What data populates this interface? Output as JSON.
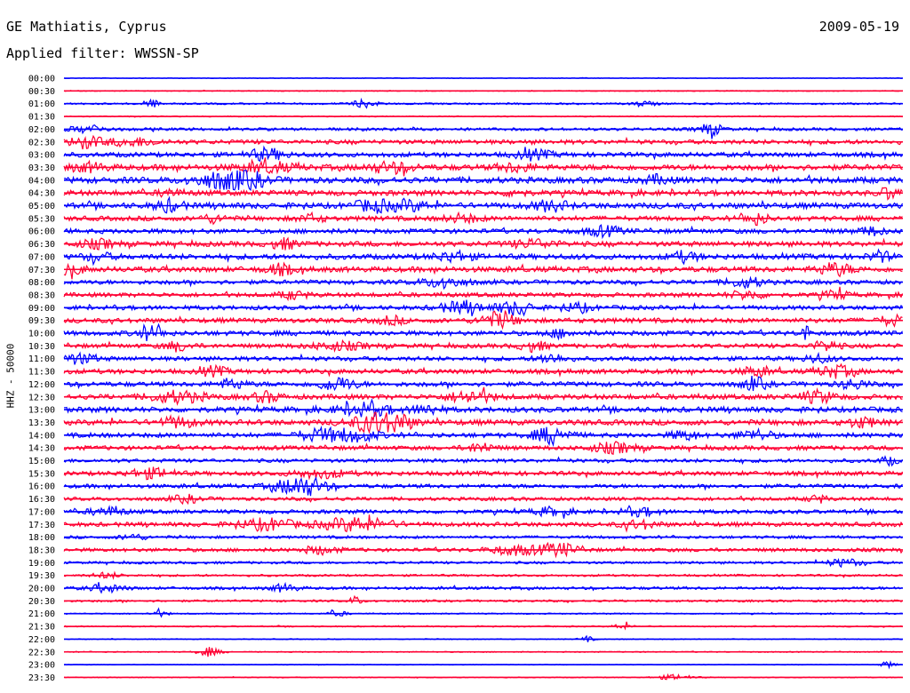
{
  "header": {
    "station": "GE Mathiatis, Cyprus",
    "date": "2009-05-19",
    "filter": "Applied filter: WWSSN-SP"
  },
  "chart_data": {
    "type": "line",
    "title": "GE Mathiatis, Cyprus",
    "ylabel": "HHZ - 50000",
    "rows": [
      "00:00",
      "00:30",
      "01:00",
      "01:30",
      "02:00",
      "02:30",
      "03:00",
      "03:30",
      "04:00",
      "04:30",
      "05:00",
      "05:30",
      "06:00",
      "06:30",
      "07:00",
      "07:30",
      "08:00",
      "08:30",
      "09:00",
      "09:30",
      "10:00",
      "10:30",
      "11:00",
      "11:30",
      "12:00",
      "12:30",
      "13:00",
      "13:30",
      "14:00",
      "14:30",
      "15:00",
      "15:30",
      "16:00",
      "16:30",
      "17:00",
      "17:30",
      "18:00",
      "18:30",
      "19:00",
      "19:30",
      "20:00",
      "20:30",
      "21:00",
      "21:30",
      "22:00",
      "22:30",
      "23:00",
      "23:30"
    ],
    "series_colors": [
      "#0000ff",
      "#ff0033"
    ],
    "noise_level": [
      0.4,
      0.5,
      1.0,
      0.6,
      1.6,
      2.4,
      2.6,
      3.2,
      3.4,
      3.0,
      3.2,
      2.6,
      2.6,
      2.8,
      3.0,
      3.0,
      2.4,
      2.4,
      2.4,
      2.6,
      2.6,
      2.4,
      2.4,
      2.6,
      2.6,
      2.8,
      3.0,
      3.0,
      2.6,
      2.4,
      2.0,
      2.4,
      2.2,
      2.0,
      2.2,
      2.4,
      1.6,
      2.0,
      1.4,
      1.2,
      1.6,
      1.2,
      0.7,
      0.7,
      0.5,
      0.6,
      0.4,
      0.5
    ],
    "events": [
      [],
      [],
      [
        [
          170,
          10,
          4
        ],
        [
          410,
          14,
          4
        ],
        [
          725,
          12,
          3
        ]
      ],
      [],
      [
        [
          100,
          20,
          4
        ],
        [
          800,
          14,
          6
        ]
      ],
      [
        [
          95,
          18,
          6
        ],
        [
          150,
          30,
          4
        ]
      ],
      [
        [
          300,
          20,
          6
        ],
        [
          600,
          20,
          5
        ]
      ],
      [
        [
          100,
          20,
          4
        ],
        [
          300,
          30,
          5
        ],
        [
          440,
          25,
          5
        ],
        [
          580,
          20,
          4
        ]
      ],
      [
        [
          250,
          30,
          8
        ],
        [
          280,
          20,
          7
        ],
        [
          740,
          15,
          4
        ]
      ],
      [
        [
          190,
          10,
          4
        ],
        [
          580,
          10,
          4
        ],
        [
          1000,
          10,
          6
        ]
      ],
      [
        [
          190,
          15,
          6
        ],
        [
          420,
          20,
          6
        ],
        [
          460,
          20,
          5
        ],
        [
          620,
          20,
          5
        ]
      ],
      [
        [
          240,
          15,
          4
        ],
        [
          350,
          15,
          4
        ],
        [
          520,
          20,
          4
        ],
        [
          850,
          15,
          6
        ]
      ],
      [
        [
          680,
          20,
          5
        ],
        [
          980,
          15,
          4
        ]
      ],
      [
        [
          110,
          20,
          4
        ],
        [
          320,
          15,
          5
        ],
        [
          600,
          25,
          4
        ]
      ],
      [
        [
          110,
          15,
          4
        ],
        [
          510,
          20,
          5
        ],
        [
          770,
          15,
          5
        ],
        [
          990,
          12,
          5
        ]
      ],
      [
        [
          80,
          15,
          5
        ],
        [
          315,
          15,
          5
        ],
        [
          940,
          20,
          6
        ]
      ],
      [
        [
          500,
          25,
          5
        ],
        [
          840,
          20,
          5
        ]
      ],
      [
        [
          330,
          15,
          4
        ],
        [
          840,
          20,
          4
        ],
        [
          940,
          15,
          4
        ]
      ],
      [
        [
          520,
          25,
          6
        ],
        [
          580,
          20,
          7
        ],
        [
          650,
          15,
          5
        ]
      ],
      [
        [
          440,
          15,
          4
        ],
        [
          560,
          20,
          8
        ],
        [
          1005,
          15,
          5
        ]
      ],
      [
        [
          170,
          15,
          7
        ],
        [
          905,
          4,
          14
        ],
        [
          630,
          15,
          4
        ]
      ],
      [
        [
          200,
          15,
          5
        ],
        [
          380,
          30,
          4
        ],
        [
          600,
          15,
          5
        ],
        [
          930,
          15,
          5
        ]
      ],
      [
        [
          90,
          20,
          5
        ],
        [
          620,
          15,
          5
        ],
        [
          920,
          15,
          4
        ]
      ],
      [
        [
          240,
          15,
          5
        ],
        [
          850,
          15,
          5
        ],
        [
          940,
          20,
          6
        ]
      ],
      [
        [
          260,
          15,
          5
        ],
        [
          380,
          20,
          7
        ],
        [
          850,
          15,
          6
        ],
        [
          960,
          15,
          5
        ]
      ],
      [
        [
          200,
          30,
          6
        ],
        [
          300,
          15,
          5
        ],
        [
          530,
          25,
          6
        ],
        [
          920,
          20,
          6
        ]
      ],
      [
        [
          410,
          30,
          6
        ],
        [
          480,
          15,
          5
        ]
      ],
      [
        [
          200,
          20,
          5
        ],
        [
          420,
          25,
          8
        ],
        [
          440,
          25,
          9
        ],
        [
          970,
          15,
          5
        ]
      ],
      [
        [
          360,
          25,
          6
        ],
        [
          400,
          25,
          6
        ],
        [
          620,
          20,
          8
        ],
        [
          770,
          15,
          5
        ],
        [
          850,
          20,
          5
        ]
      ],
      [
        [
          540,
          15,
          5
        ],
        [
          690,
          25,
          5
        ]
      ],
      [
        [
          1000,
          10,
          4
        ]
      ],
      [
        [
          170,
          25,
          5
        ],
        [
          360,
          30,
          4
        ]
      ],
      [
        [
          330,
          25,
          7
        ],
        [
          350,
          20,
          6
        ]
      ],
      [
        [
          210,
          15,
          4
        ],
        [
          920,
          10,
          4
        ]
      ],
      [
        [
          120,
          20,
          4
        ],
        [
          620,
          20,
          4
        ],
        [
          720,
          20,
          4
        ]
      ],
      [
        [
          300,
          30,
          6
        ],
        [
          400,
          40,
          7
        ],
        [
          720,
          20,
          4
        ]
      ],
      [
        [
          150,
          15,
          3
        ]
      ],
      [
        [
          360,
          20,
          4
        ],
        [
          580,
          30,
          5
        ],
        [
          630,
          20,
          7
        ]
      ],
      [
        [
          950,
          20,
          4
        ]
      ],
      [
        [
          120,
          15,
          3
        ]
      ],
      [
        [
          120,
          20,
          4
        ],
        [
          320,
          15,
          4
        ]
      ],
      [
        [
          400,
          6,
          5
        ]
      ],
      [
        [
          180,
          10,
          3
        ],
        [
          380,
          10,
          3
        ]
      ],
      [
        [
          700,
          10,
          3
        ]
      ],
      [
        [
          660,
          8,
          3
        ]
      ],
      [
        [
          235,
          12,
          5
        ]
      ],
      [
        [
          1000,
          8,
          4
        ]
      ],
      [
        [
          760,
          20,
          3
        ]
      ]
    ]
  }
}
